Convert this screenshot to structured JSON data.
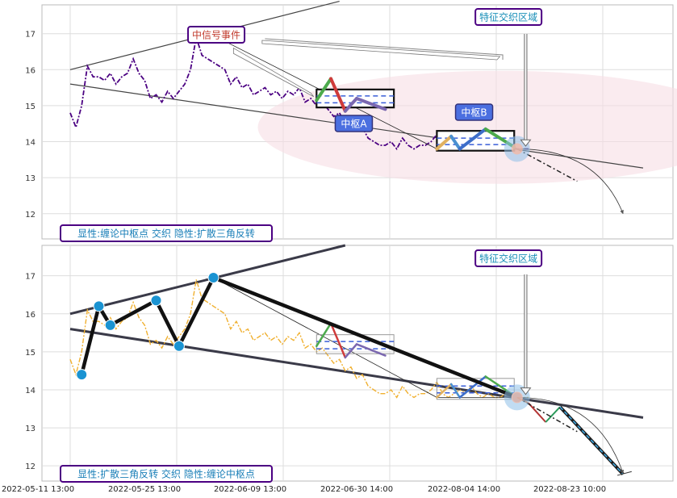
{
  "chart_data": [
    {
      "type": "line",
      "panel": "top",
      "ylim": [
        11.3,
        17.8
      ],
      "yticks": [
        12,
        13,
        14,
        15,
        16,
        17
      ],
      "xlim": [
        0,
        100
      ],
      "grid": true,
      "series": [
        {
          "color": "#4b0082",
          "style": "dash-dot",
          "x": [
            0,
            1,
            2,
            3,
            4,
            5,
            6,
            7,
            8,
            9,
            10,
            11,
            12,
            13,
            14,
            15,
            16,
            17,
            18,
            19,
            20,
            21,
            22,
            23,
            24,
            25,
            26,
            27,
            28,
            29,
            30,
            31,
            32,
            33,
            34,
            35,
            36,
            37,
            38,
            39,
            40,
            41,
            42,
            43,
            44,
            45,
            46,
            47,
            48,
            49,
            50,
            51,
            52,
            53,
            54,
            55,
            56,
            57,
            58,
            59,
            60,
            61,
            62,
            63,
            64,
            65,
            66,
            67,
            68,
            69,
            70,
            71,
            72,
            73,
            74,
            75,
            76,
            77,
            78,
            79,
            80
          ],
          "y": [
            14.8,
            14.4,
            15.0,
            16.1,
            15.8,
            15.8,
            15.7,
            15.9,
            15.6,
            15.8,
            15.9,
            16.3,
            15.9,
            15.7,
            15.2,
            15.3,
            15.1,
            15.4,
            15.2,
            15.4,
            15.6,
            16.0,
            16.9,
            16.4,
            16.3,
            16.2,
            16.1,
            16.0,
            15.6,
            15.8,
            15.5,
            15.6,
            15.3,
            15.4,
            15.5,
            15.3,
            15.4,
            15.2,
            15.4,
            15.3,
            15.5,
            15.1,
            15.2,
            15.0,
            15.1,
            14.9,
            14.7,
            14.8,
            14.5,
            14.6,
            14.3,
            14.4,
            14.1,
            14.0,
            13.9,
            13.9,
            14.0,
            13.8,
            14.1,
            13.9,
            13.8,
            13.9,
            13.9,
            14.0,
            14.2,
            13.9,
            13.8,
            13.9,
            14.0,
            13.9,
            14.1,
            13.9,
            13.8,
            13.9,
            13.8,
            13.8,
            13.9,
            13.85,
            13.8,
            13.8,
            13.8
          ]
        }
      ],
      "annotations": {
        "signal_event": "中信号事件",
        "feature_zone": "特征交织区域",
        "pivot_a": "中枢A",
        "pivot_b": "中枢B",
        "legend": "显性:缠论中枢点 交织 隐性:扩散三角反转"
      }
    },
    {
      "type": "line",
      "panel": "bottom",
      "ylim": [
        11.6,
        17.8
      ],
      "yticks": [
        12,
        13,
        14,
        15,
        16,
        17
      ],
      "xlim": [
        0,
        100
      ],
      "grid": true,
      "xticks": [
        "2022-05-11 13:00",
        "2022-05-25 13:00",
        "2022-06-09 13:00",
        "2022-06-30 14:00",
        "2022-08-04 14:00",
        "2022-08-23 10:00"
      ],
      "series": [
        {
          "color": "#f0b030",
          "style": "dash-dot",
          "x": [
            0,
            1,
            2,
            3,
            4,
            5,
            6,
            7,
            8,
            9,
            10,
            11,
            12,
            13,
            14,
            15,
            16,
            17,
            18,
            19,
            20,
            21,
            22,
            23,
            24,
            25,
            26,
            27,
            28,
            29,
            30,
            31,
            32,
            33,
            34,
            35,
            36,
            37,
            38,
            39,
            40,
            41,
            42,
            43,
            44,
            45,
            46,
            47,
            48,
            49,
            50,
            51,
            52,
            53,
            54,
            55,
            56,
            57,
            58,
            59,
            60,
            61,
            62,
            63,
            64,
            65,
            66,
            67,
            68,
            69,
            70,
            71,
            72,
            73,
            74,
            75,
            76,
            77,
            78,
            79,
            80
          ],
          "y": [
            14.8,
            14.4,
            15.0,
            16.1,
            15.8,
            15.8,
            15.7,
            15.9,
            15.6,
            15.8,
            15.9,
            16.3,
            15.9,
            15.7,
            15.2,
            15.3,
            15.1,
            15.4,
            15.2,
            15.4,
            15.6,
            16.0,
            16.9,
            16.4,
            16.3,
            16.2,
            16.1,
            16.0,
            15.6,
            15.8,
            15.5,
            15.6,
            15.3,
            15.4,
            15.5,
            15.3,
            15.4,
            15.2,
            15.4,
            15.3,
            15.5,
            15.1,
            15.2,
            15.0,
            15.1,
            14.9,
            14.7,
            14.8,
            14.5,
            14.6,
            14.3,
            14.4,
            14.1,
            14.0,
            13.9,
            13.9,
            14.0,
            13.8,
            14.1,
            13.9,
            13.8,
            13.9,
            13.9,
            14.0,
            14.2,
            13.9,
            13.8,
            13.9,
            14.0,
            13.9,
            14.1,
            13.9,
            13.8,
            13.9,
            13.8,
            13.8,
            13.9,
            13.85,
            13.8,
            13.8,
            13.8
          ]
        },
        {
          "color": "#111111",
          "style": "zigzag",
          "x": [
            2,
            5,
            7,
            15,
            19,
            25,
            78
          ],
          "y": [
            14.4,
            16.2,
            15.7,
            16.35,
            15.15,
            16.95,
            13.8
          ]
        }
      ],
      "annotations": {
        "feature_zone": "特征交织区域",
        "legend": "显性:扩散三角反转 交织 隐性:缠论中枢点"
      }
    }
  ]
}
